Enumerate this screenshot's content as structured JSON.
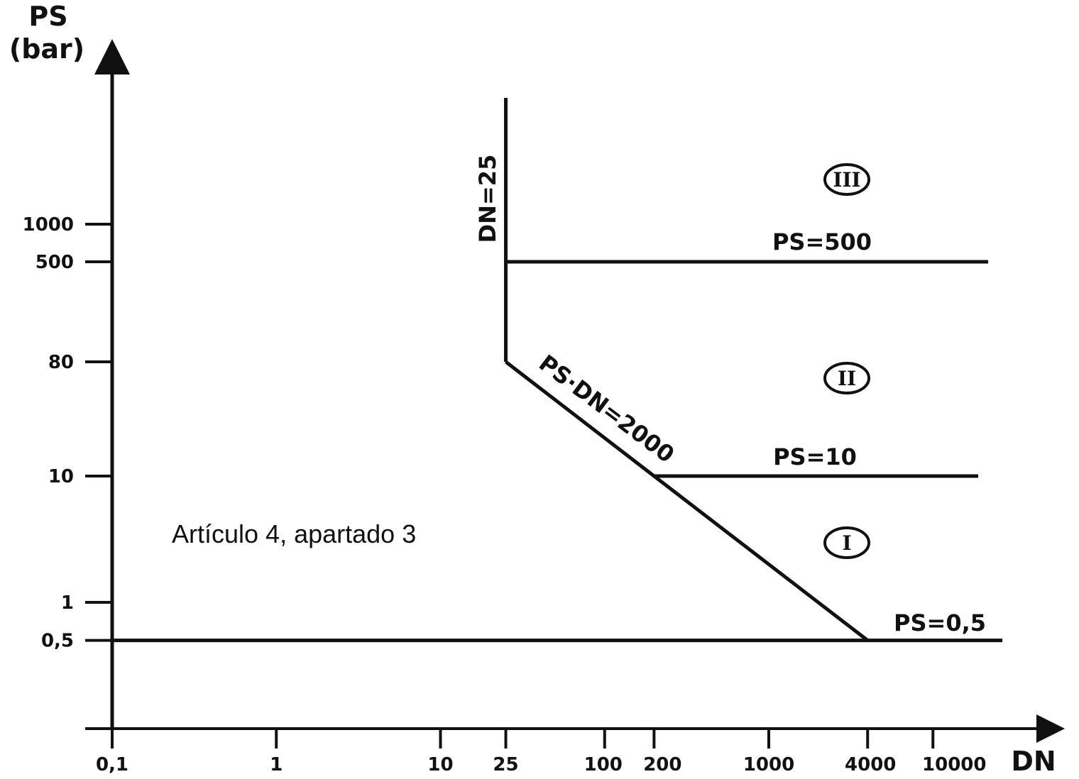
{
  "chart_data": {
    "type": "line",
    "x_scale": "log",
    "y_scale": "log",
    "xlabel": "DN",
    "ylabel": [
      "PS",
      "(bar)"
    ],
    "xlim": [
      0.1,
      15000
    ],
    "ylim": [
      0.2,
      8000
    ],
    "x_ticks": [
      {
        "value": 0.1,
        "label": "0,1"
      },
      {
        "value": 1,
        "label": "1"
      },
      {
        "value": 10,
        "label": "10"
      },
      {
        "value": 25,
        "label": "25"
      },
      {
        "value": 100,
        "label": "100"
      },
      {
        "value": 200,
        "label": "200"
      },
      {
        "value": 1000,
        "label": "1000"
      },
      {
        "value": 4000,
        "label": "4000"
      },
      {
        "value": 10000,
        "label": "10000"
      }
    ],
    "y_ticks": [
      {
        "value": 0.5,
        "label": "0,5"
      },
      {
        "value": 1,
        "label": "1"
      },
      {
        "value": 10,
        "label": "10"
      },
      {
        "value": 80,
        "label": "80"
      },
      {
        "value": 500,
        "label": "500"
      },
      {
        "value": 1000,
        "label": "1000"
      }
    ],
    "series": [
      {
        "name": "DN=25",
        "x": [
          25,
          25
        ],
        "y": [
          80,
          3000
        ]
      },
      {
        "name": "PS=500",
        "x": [
          25,
          12000
        ],
        "y": [
          500,
          500
        ]
      },
      {
        "name": "PS·DN=2000",
        "x": [
          25,
          200,
          4000
        ],
        "y": [
          80,
          10,
          0.5
        ]
      },
      {
        "name": "PS=10",
        "x": [
          200,
          11000
        ],
        "y": [
          10,
          10
        ]
      },
      {
        "name": "PS=0,5",
        "x": [
          0.1,
          14000
        ],
        "y": [
          0.5,
          0.5
        ]
      }
    ],
    "regions": [
      {
        "label": "III",
        "x": 2000,
        "y": 2000
      },
      {
        "label": "II",
        "x": 2000,
        "y": 55
      },
      {
        "label": "I",
        "x": 2000,
        "y": 2.5
      }
    ],
    "annotations": [
      {
        "text": "Artículo 4, apartado 3",
        "x": 0.3,
        "y": 4
      }
    ],
    "grid": false,
    "legend": "none"
  }
}
